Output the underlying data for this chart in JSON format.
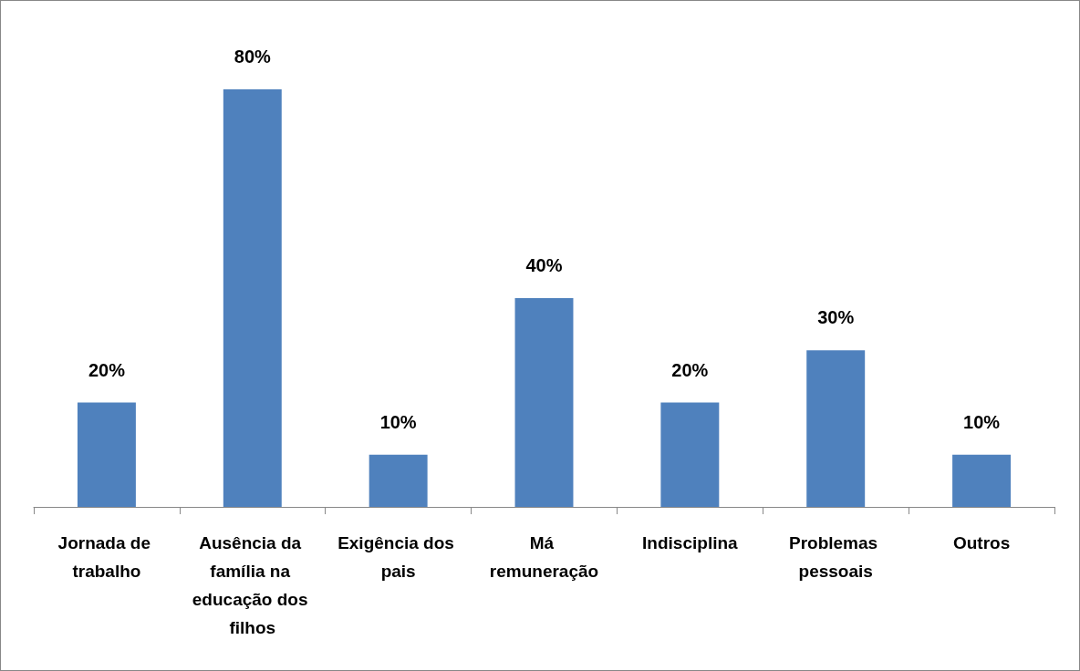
{
  "chart_data": {
    "type": "bar",
    "categories": [
      "Jornada de trabalho",
      "Ausência da família na educação dos filhos",
      "Exigência dos pais",
      "Má remuneração",
      "Indisciplina",
      "Problemas pessoais",
      "Outros"
    ],
    "values": [
      20,
      80,
      10,
      40,
      20,
      30,
      10
    ],
    "value_labels": [
      "20%",
      "80%",
      "10%",
      "40%",
      "20%",
      "30%",
      "10%"
    ],
    "color": "#4f81bd"
  }
}
